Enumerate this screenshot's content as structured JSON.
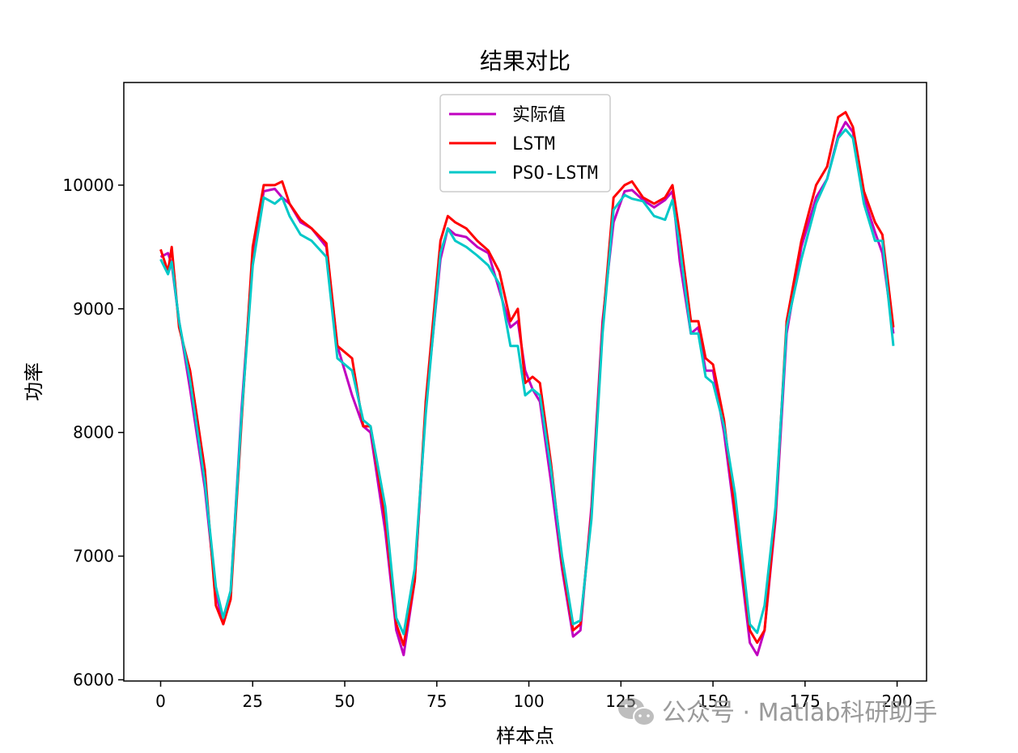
{
  "chart_data": {
    "type": "line",
    "title": "结果对比",
    "xlabel": "样本点",
    "ylabel": "功率",
    "xlim": [
      -10,
      208
    ],
    "ylim": [
      5990,
      10830
    ],
    "xticks": [
      0,
      25,
      50,
      75,
      100,
      125,
      150,
      175,
      200
    ],
    "yticks": [
      6000,
      7000,
      8000,
      9000,
      10000
    ],
    "grid": false,
    "legend_position": "top-center",
    "x_anchors": [
      0,
      2,
      3,
      5,
      8,
      12,
      15,
      17,
      19,
      22,
      25,
      28,
      31,
      33,
      35,
      38,
      41,
      45,
      48,
      52,
      55,
      57,
      61,
      64,
      66,
      69,
      72,
      76,
      78,
      80,
      83,
      86,
      89,
      92,
      95,
      97,
      99,
      101,
      103,
      106,
      109,
      112,
      114,
      117,
      120,
      123,
      126,
      128,
      131,
      134,
      137,
      139,
      141,
      144,
      146,
      148,
      150,
      153,
      156,
      160,
      162,
      164,
      167,
      170,
      174,
      178,
      181,
      184,
      186,
      188,
      191,
      194,
      196,
      199
    ],
    "series": [
      {
        "name": "实际值",
        "color": "#c000c0",
        "values": [
          9420,
          9450,
          9360,
          8900,
          8350,
          7550,
          6700,
          6450,
          6700,
          8200,
          9400,
          9950,
          9970,
          9900,
          9850,
          9700,
          9650,
          9500,
          8700,
          8300,
          8050,
          8000,
          7200,
          6400,
          6200,
          6800,
          8200,
          9400,
          9650,
          9600,
          9580,
          9500,
          9450,
          9150,
          8850,
          8900,
          8500,
          8350,
          8250,
          7600,
          6900,
          6350,
          6400,
          7400,
          8900,
          9700,
          9950,
          9960,
          9880,
          9820,
          9880,
          9950,
          9380,
          8800,
          8850,
          8500,
          8500,
          8000,
          7300,
          6300,
          6200,
          6400,
          7300,
          8800,
          9500,
          9900,
          10050,
          10400,
          10510,
          10430,
          9900,
          9620,
          9450,
          8800
        ]
      },
      {
        "name": "LSTM",
        "color": "#ff0000",
        "values": [
          9480,
          9300,
          9500,
          8850,
          8500,
          7700,
          6600,
          6450,
          6650,
          8100,
          9500,
          10000,
          10000,
          10030,
          9850,
          9720,
          9650,
          9530,
          8700,
          8600,
          8050,
          8050,
          7300,
          6450,
          6280,
          6800,
          8250,
          9550,
          9750,
          9700,
          9650,
          9550,
          9470,
          9300,
          8900,
          9000,
          8400,
          8450,
          8400,
          7750,
          6950,
          6400,
          6450,
          7350,
          8850,
          9900,
          10000,
          10030,
          9900,
          9850,
          9900,
          10000,
          9600,
          8900,
          8900,
          8600,
          8550,
          8100,
          7350,
          6400,
          6300,
          6400,
          7350,
          8900,
          9550,
          10000,
          10150,
          10550,
          10590,
          10470,
          9950,
          9700,
          9600,
          8850
        ]
      },
      {
        "name": "PSO-LSTM",
        "color": "#00c8c8",
        "values": [
          9400,
          9280,
          9380,
          8900,
          8420,
          7600,
          6750,
          6500,
          6720,
          8150,
          9350,
          9900,
          9850,
          9900,
          9750,
          9600,
          9550,
          9420,
          8600,
          8500,
          8100,
          8050,
          7400,
          6500,
          6370,
          6900,
          8150,
          9450,
          9650,
          9550,
          9500,
          9430,
          9350,
          9200,
          8700,
          8700,
          8300,
          8350,
          8300,
          7700,
          7000,
          6450,
          6480,
          7300,
          8800,
          9800,
          9920,
          9890,
          9870,
          9750,
          9720,
          9880,
          9500,
          8800,
          8800,
          8450,
          8400,
          8050,
          7500,
          6450,
          6380,
          6600,
          7400,
          8850,
          9400,
          9850,
          10050,
          10380,
          10450,
          10380,
          9850,
          9550,
          9550,
          8700
        ]
      }
    ]
  },
  "watermark": {
    "text": "公众号 · Matlab科研助手",
    "icon": "wechat-icon"
  }
}
